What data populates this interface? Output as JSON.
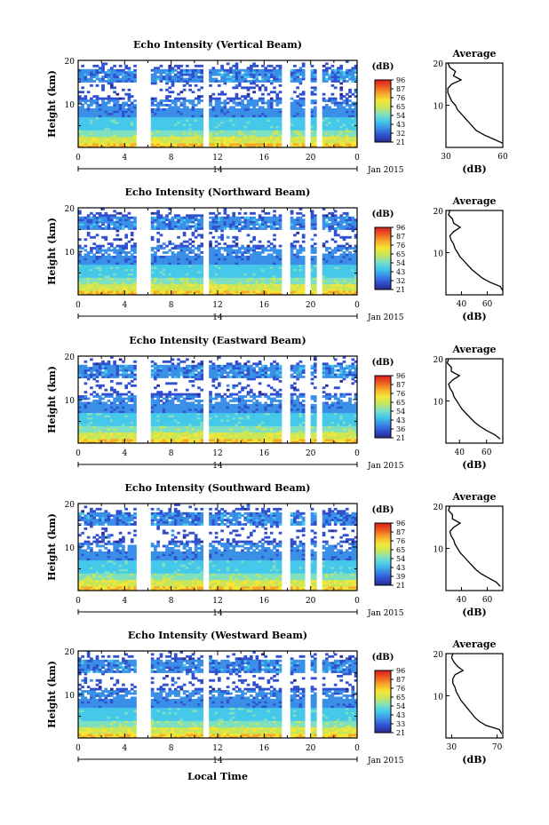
{
  "colors": {
    "colormap": [
      "#2a2a8c",
      "#3050d0",
      "#3a8fe6",
      "#45c8ea",
      "#7fe0c0",
      "#c8e65a",
      "#f5e636",
      "#f6a82a",
      "#ee5a20",
      "#d81e1e"
    ],
    "axis": "#000000",
    "background": "#ffffff"
  },
  "x_axis_label": "Local Time",
  "date_label": "Jan 2015",
  "day_label": "14",
  "shared_x_ticks": [
    "0",
    "4",
    "8",
    "12",
    "16",
    "20",
    "0"
  ],
  "chart_data": [
    {
      "type": "heatmap",
      "title": "Echo Intensity (Vertical Beam)",
      "ylabel": "Height (km)",
      "xlabel": "",
      "x_range_hours": [
        0,
        24
      ],
      "y_range_km": [
        0,
        20
      ],
      "y_ticks": [
        "20",
        "10"
      ],
      "x_ticks": [
        "0",
        "4",
        "8",
        "12",
        "16",
        "20",
        "0"
      ],
      "colorbar_label": "(dB)",
      "colorbar_ticks": [
        "96",
        "87",
        "76",
        "65",
        "54",
        "43",
        "32",
        "21"
      ],
      "data_gaps_hours": [
        [
          5.0,
          6.2
        ],
        [
          10.8,
          11.2
        ],
        [
          17.5,
          18.2
        ],
        [
          19.6,
          20.1
        ],
        [
          20.5,
          20.9
        ]
      ],
      "profile": {
        "title": "Average",
        "xlabel": "(dB)",
        "x_ticks": [
          "30",
          "60"
        ],
        "y_ticks": [
          "20",
          "10"
        ],
        "x_range": [
          30,
          60
        ],
        "height_km": [
          1,
          2,
          3,
          4,
          5,
          6,
          7,
          8,
          9,
          10,
          11,
          12,
          13,
          14,
          15,
          16,
          17,
          18,
          19,
          20
        ],
        "value_db": [
          60,
          55,
          50,
          46,
          44,
          42,
          40,
          38,
          36,
          35,
          33,
          32,
          31,
          31,
          33,
          38,
          34,
          35,
          32,
          31
        ]
      }
    },
    {
      "type": "heatmap",
      "title": "Echo Intensity (Northward Beam)",
      "ylabel": "Height (km)",
      "xlabel": "",
      "x_range_hours": [
        0,
        24
      ],
      "y_range_km": [
        0,
        20
      ],
      "y_ticks": [
        "20",
        "10"
      ],
      "x_ticks": [
        "0",
        "4",
        "8",
        "12",
        "16",
        "20",
        "0"
      ],
      "colorbar_label": "(dB)",
      "colorbar_ticks": [
        "96",
        "87",
        "76",
        "65",
        "54",
        "43",
        "32",
        "21"
      ],
      "data_gaps_hours": [
        [
          5.0,
          6.2
        ],
        [
          10.8,
          11.2
        ],
        [
          17.5,
          18.2
        ],
        [
          19.6,
          20.1
        ],
        [
          20.5,
          20.9
        ]
      ],
      "profile": {
        "title": "Average",
        "xlabel": "(dB)",
        "x_ticks": [
          "40",
          "60"
        ],
        "y_ticks": [
          "20",
          "10"
        ],
        "x_range": [
          28,
          72
        ],
        "height_km": [
          1,
          2,
          3,
          4,
          5,
          6,
          7,
          8,
          9,
          10,
          11,
          12,
          13,
          14,
          15,
          16,
          17,
          18,
          19,
          20
        ],
        "value_db": [
          72,
          70,
          62,
          56,
          52,
          48,
          45,
          42,
          39,
          37,
          35,
          34,
          32,
          31,
          34,
          39,
          34,
          33,
          30,
          31
        ]
      }
    },
    {
      "type": "heatmap",
      "title": "Echo Intensity (Eastward Beam)",
      "ylabel": "Height (km)",
      "xlabel": "",
      "x_range_hours": [
        0,
        24
      ],
      "y_range_km": [
        0,
        20
      ],
      "y_ticks": [
        "20",
        "10"
      ],
      "x_ticks": [
        "0",
        "4",
        "8",
        "12",
        "16",
        "20",
        "0"
      ],
      "colorbar_label": "(dB)",
      "colorbar_ticks": [
        "96",
        "87",
        "76",
        "65",
        "54",
        "43",
        "36",
        "21"
      ],
      "data_gaps_hours": [
        [
          5.0,
          6.2
        ],
        [
          10.8,
          11.2
        ],
        [
          17.5,
          18.2
        ],
        [
          19.6,
          20.1
        ],
        [
          20.5,
          20.9
        ]
      ],
      "profile": {
        "title": "Average",
        "xlabel": "(dB)",
        "x_ticks": [
          "40",
          "60"
        ],
        "y_ticks": [
          "20",
          "10"
        ],
        "x_range": [
          30,
          72
        ],
        "height_km": [
          1,
          2,
          3,
          4,
          5,
          6,
          7,
          8,
          9,
          10,
          11,
          12,
          13,
          14,
          15,
          16,
          17,
          18,
          19,
          20
        ],
        "value_db": [
          70,
          66,
          60,
          55,
          51,
          48,
          45,
          42,
          40,
          38,
          36,
          35,
          33,
          32,
          35,
          40,
          34,
          34,
          31,
          32
        ]
      }
    },
    {
      "type": "heatmap",
      "title": "Echo Intensity (Southward Beam)",
      "ylabel": "Height (km)",
      "xlabel": "",
      "x_range_hours": [
        0,
        24
      ],
      "y_range_km": [
        0,
        20
      ],
      "y_ticks": [
        "20",
        "10"
      ],
      "x_ticks": [
        "0",
        "4",
        "8",
        "12",
        "16",
        "20",
        "0"
      ],
      "colorbar_label": "(dB)",
      "colorbar_ticks": [
        "96",
        "87",
        "76",
        "65",
        "54",
        "43",
        "39",
        "21"
      ],
      "data_gaps_hours": [
        [
          5.0,
          6.2
        ],
        [
          10.8,
          11.2
        ],
        [
          17.5,
          18.2
        ],
        [
          19.6,
          20.1
        ],
        [
          20.5,
          20.9
        ]
      ],
      "profile": {
        "title": "Average",
        "xlabel": "(dB)",
        "x_ticks": [
          "40",
          "60"
        ],
        "y_ticks": [
          "20",
          "10"
        ],
        "x_range": [
          28,
          72
        ],
        "height_km": [
          1,
          2,
          3,
          4,
          5,
          6,
          7,
          8,
          9,
          10,
          11,
          12,
          13,
          14,
          15,
          16,
          17,
          18,
          19,
          20
        ],
        "value_db": [
          70,
          67,
          61,
          55,
          51,
          48,
          45,
          42,
          39,
          37,
          35,
          34,
          32,
          31,
          34,
          39,
          33,
          33,
          30,
          31
        ]
      }
    },
    {
      "type": "heatmap",
      "title": "Echo Intensity (Westward Beam)",
      "ylabel": "Height (km)",
      "xlabel": "Local Time",
      "x_range_hours": [
        0,
        24
      ],
      "y_range_km": [
        0,
        20
      ],
      "y_ticks": [
        "20",
        "10"
      ],
      "x_ticks": [
        "0",
        "4",
        "8",
        "12",
        "16",
        "20",
        "0"
      ],
      "colorbar_label": "(dB)",
      "colorbar_ticks": [
        "96",
        "87",
        "76",
        "65",
        "54",
        "43",
        "33",
        "21"
      ],
      "data_gaps_hours": [
        [
          5.0,
          6.2
        ],
        [
          10.8,
          11.2
        ],
        [
          17.5,
          18.2
        ],
        [
          19.6,
          20.1
        ],
        [
          20.5,
          20.9
        ]
      ],
      "profile": {
        "title": "Average",
        "xlabel": "(dB)",
        "x_ticks": [
          "30",
          "70"
        ],
        "y_ticks": [
          "20",
          "10"
        ],
        "x_range": [
          25,
          75
        ],
        "height_km": [
          1,
          2,
          3,
          4,
          5,
          6,
          7,
          8,
          9,
          10,
          11,
          12,
          13,
          14,
          15,
          16,
          17,
          18,
          19,
          20
        ],
        "value_db": [
          74,
          72,
          60,
          54,
          50,
          47,
          44,
          41,
          38,
          36,
          34,
          33,
          31,
          31,
          33,
          40,
          35,
          32,
          30,
          31
        ]
      }
    }
  ]
}
